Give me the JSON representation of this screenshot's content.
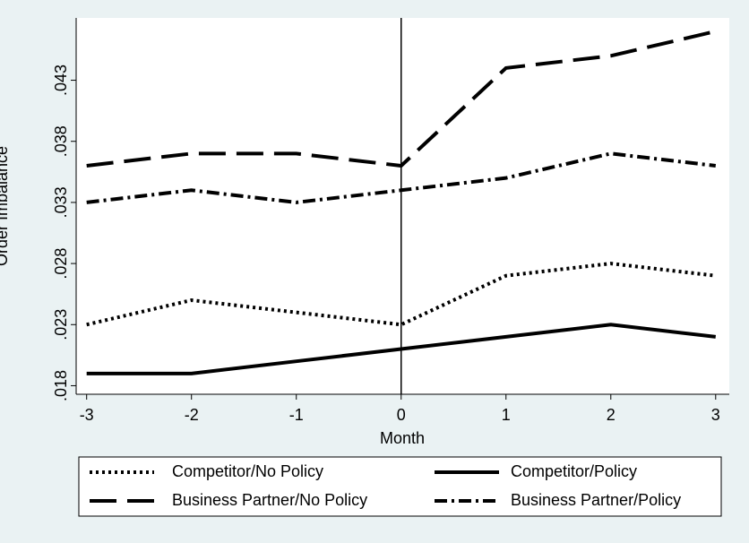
{
  "chart_data": {
    "type": "line",
    "xlabel": "Month",
    "ylabel": "Order Imbalance",
    "x": [
      -3,
      -2,
      -1,
      0,
      1,
      2,
      3
    ],
    "xlim": [
      -3.1,
      3.13
    ],
    "xticks": [
      -3,
      -2,
      -1,
      0,
      1,
      2,
      3
    ],
    "ylim": [
      0.0173,
      0.0481
    ],
    "yticks": [
      {
        "value": 0.018,
        "label": ".018"
      },
      {
        "value": 0.023,
        "label": ".023"
      },
      {
        "value": 0.028,
        "label": ".028"
      },
      {
        "value": 0.033,
        "label": ".033"
      },
      {
        "value": 0.038,
        "label": ".038"
      },
      {
        "value": 0.043,
        "label": ".043"
      }
    ],
    "xline": 0,
    "legend": "bottom",
    "series": [
      {
        "name": "Competitor/No Policy",
        "color": "#000000",
        "dash": "dot",
        "values": [
          0.023,
          0.025,
          0.024,
          0.023,
          0.027,
          0.028,
          0.027
        ]
      },
      {
        "name": "Competitor/Policy",
        "color": "#000000",
        "dash": "solid",
        "values": [
          0.019,
          0.019,
          0.02,
          0.021,
          0.022,
          0.023,
          0.022
        ]
      },
      {
        "name": "Business Partner/No Policy",
        "color": "#000000",
        "dash": "dash",
        "values": [
          0.036,
          0.037,
          0.037,
          0.036,
          0.044,
          0.045,
          0.047
        ]
      },
      {
        "name": "Business Partner/Policy",
        "color": "#000000",
        "dash": "dashdot",
        "values": [
          0.033,
          0.034,
          0.033,
          0.034,
          0.035,
          0.037,
          0.036
        ]
      }
    ]
  }
}
